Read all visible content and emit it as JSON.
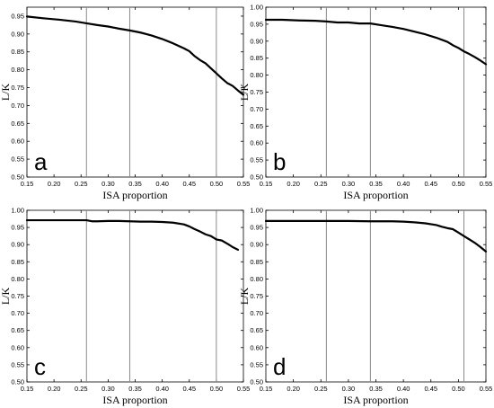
{
  "chart_data": [
    {
      "type": "line",
      "panel_label": "a",
      "xlabel": "ISA proportion",
      "ylabel": "L/K",
      "xlim": [
        0.15,
        0.55
      ],
      "ylim": [
        0.5,
        1.0
      ],
      "xticks": [
        "0.15",
        "0.20",
        "0.25",
        "0.30",
        "0.35",
        "0.40",
        "0.45",
        "0.50",
        "0.55"
      ],
      "yticks": [
        "0.50",
        "0.55",
        "0.60",
        "0.65",
        "0.70",
        "0.75",
        "0.80",
        "0.85",
        "0.90",
        "0.95"
      ],
      "vlines": [
        0.26,
        0.34,
        0.5
      ],
      "series": [
        {
          "x": [
            0.15,
            0.18,
            0.21,
            0.24,
            0.26,
            0.28,
            0.3,
            0.32,
            0.34,
            0.36,
            0.38,
            0.4,
            0.42,
            0.44,
            0.45,
            0.46,
            0.47,
            0.48,
            0.49,
            0.5,
            0.51,
            0.52,
            0.53,
            0.54,
            0.55
          ],
          "y": [
            0.949,
            0.944,
            0.94,
            0.935,
            0.93,
            0.925,
            0.921,
            0.915,
            0.91,
            0.904,
            0.896,
            0.886,
            0.874,
            0.86,
            0.852,
            0.838,
            0.827,
            0.818,
            0.804,
            0.79,
            0.776,
            0.763,
            0.755,
            0.742,
            0.73
          ]
        }
      ]
    },
    {
      "type": "line",
      "panel_label": "b",
      "xlabel": "ISA proportion",
      "ylabel": "L/K",
      "xlim": [
        0.15,
        0.55
      ],
      "ylim": [
        0.5,
        1.0
      ],
      "xticks": [
        "0.15",
        "0.20",
        "0.25",
        "0.30",
        "0.35",
        "0.40",
        "0.45",
        "0.50",
        "0.55"
      ],
      "yticks": [
        "0.50",
        "0.55",
        "0.60",
        "0.65",
        "0.70",
        "0.75",
        "0.80",
        "0.85",
        "0.90",
        "0.95",
        "1.00"
      ],
      "vlines": [
        0.26,
        0.34,
        0.51
      ],
      "series": [
        {
          "x": [
            0.15,
            0.18,
            0.21,
            0.24,
            0.26,
            0.28,
            0.3,
            0.32,
            0.34,
            0.36,
            0.38,
            0.4,
            0.42,
            0.44,
            0.46,
            0.48,
            0.49,
            0.5,
            0.51,
            0.52,
            0.53,
            0.54,
            0.55
          ],
          "y": [
            0.963,
            0.963,
            0.961,
            0.96,
            0.958,
            0.955,
            0.955,
            0.952,
            0.952,
            0.947,
            0.942,
            0.936,
            0.928,
            0.92,
            0.91,
            0.898,
            0.888,
            0.88,
            0.87,
            0.862,
            0.853,
            0.843,
            0.832
          ]
        }
      ]
    },
    {
      "type": "line",
      "panel_label": "c",
      "xlabel": "ISA proportion",
      "ylabel": "L/K",
      "xlim": [
        0.15,
        0.55
      ],
      "ylim": [
        0.5,
        1.0
      ],
      "xticks": [
        "0.15",
        "0.20",
        "0.25",
        "0.30",
        "0.35",
        "0.40",
        "0.45",
        "0.50",
        "0.55"
      ],
      "yticks": [
        "0.50",
        "0.55",
        "0.60",
        "0.65",
        "0.70",
        "0.75",
        "0.80",
        "0.85",
        "0.90",
        "0.95",
        "1.00"
      ],
      "vlines": [
        0.26,
        0.34,
        0.5
      ],
      "series": [
        {
          "x": [
            0.15,
            0.2,
            0.25,
            0.26,
            0.27,
            0.28,
            0.3,
            0.32,
            0.34,
            0.36,
            0.38,
            0.4,
            0.42,
            0.44,
            0.45,
            0.46,
            0.47,
            0.48,
            0.49,
            0.5,
            0.51,
            0.52,
            0.53,
            0.54
          ],
          "y": [
            0.971,
            0.971,
            0.971,
            0.971,
            0.968,
            0.968,
            0.969,
            0.969,
            0.968,
            0.967,
            0.967,
            0.966,
            0.964,
            0.959,
            0.953,
            0.945,
            0.938,
            0.93,
            0.925,
            0.915,
            0.912,
            0.903,
            0.893,
            0.885
          ]
        }
      ]
    },
    {
      "type": "line",
      "panel_label": "d",
      "xlabel": "ISA proportion",
      "ylabel": "L/K",
      "xlim": [
        0.15,
        0.55
      ],
      "ylim": [
        0.5,
        1.0
      ],
      "xticks": [
        "0.15",
        "0.20",
        "0.25",
        "0.30",
        "0.35",
        "0.40",
        "0.45",
        "0.50",
        "0.55"
      ],
      "yticks": [
        "0.50",
        "0.55",
        "0.60",
        "0.65",
        "0.70",
        "0.75",
        "0.80",
        "0.85",
        "0.90",
        "0.95",
        "1.00"
      ],
      "vlines": [
        0.26,
        0.34,
        0.51
      ],
      "series": [
        {
          "x": [
            0.15,
            0.2,
            0.25,
            0.3,
            0.34,
            0.38,
            0.4,
            0.42,
            0.44,
            0.46,
            0.47,
            0.48,
            0.49,
            0.5,
            0.51,
            0.52,
            0.53,
            0.54,
            0.55
          ],
          "y": [
            0.969,
            0.969,
            0.969,
            0.969,
            0.968,
            0.968,
            0.967,
            0.965,
            0.962,
            0.957,
            0.952,
            0.948,
            0.945,
            0.935,
            0.925,
            0.915,
            0.905,
            0.893,
            0.88
          ]
        }
      ]
    }
  ]
}
